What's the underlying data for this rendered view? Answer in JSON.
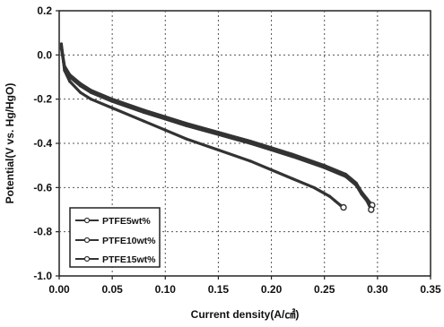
{
  "chart_data": {
    "type": "line",
    "title": "",
    "xlabel": "Current density(A/㎠)",
    "ylabel": "Potential(V vs. Hg/HgO)",
    "xlim": [
      0.0,
      0.35
    ],
    "ylim": [
      -1.0,
      0.2
    ],
    "xticks": [
      "0.00",
      "0.05",
      "0.10",
      "0.15",
      "0.20",
      "0.25",
      "0.30",
      "0.35"
    ],
    "yticks": [
      "0.2",
      "0.0",
      "-0.2",
      "-0.4",
      "-0.6",
      "-0.8",
      "-1.0"
    ],
    "grid": true,
    "legend_position": "bottom-left",
    "series": [
      {
        "name": "PTFE5wt%",
        "color": "#333333",
        "x": [
          0.002,
          0.005,
          0.01,
          0.02,
          0.03,
          0.05,
          0.08,
          0.1,
          0.12,
          0.15,
          0.18,
          0.2,
          0.22,
          0.24,
          0.255,
          0.26,
          0.265,
          0.268
        ],
        "y": [
          0.05,
          -0.07,
          -0.12,
          -0.17,
          -0.2,
          -0.24,
          -0.3,
          -0.34,
          -0.38,
          -0.43,
          -0.48,
          -0.52,
          -0.56,
          -0.6,
          -0.64,
          -0.66,
          -0.68,
          -0.69
        ]
      },
      {
        "name": "PTFE10wt%",
        "color": "#333333",
        "x": [
          0.002,
          0.005,
          0.01,
          0.02,
          0.03,
          0.05,
          0.08,
          0.1,
          0.12,
          0.15,
          0.18,
          0.2,
          0.22,
          0.25,
          0.27,
          0.28,
          0.285,
          0.29,
          0.295
        ],
        "y": [
          0.04,
          -0.05,
          -0.09,
          -0.13,
          -0.16,
          -0.2,
          -0.25,
          -0.28,
          -0.31,
          -0.35,
          -0.39,
          -0.42,
          -0.45,
          -0.5,
          -0.54,
          -0.58,
          -0.62,
          -0.65,
          -0.68
        ]
      },
      {
        "name": "PTFE15wt%",
        "color": "#333333",
        "x": [
          0.002,
          0.005,
          0.01,
          0.02,
          0.03,
          0.05,
          0.08,
          0.1,
          0.12,
          0.15,
          0.18,
          0.2,
          0.22,
          0.25,
          0.27,
          0.28,
          0.285,
          0.29,
          0.294
        ],
        "y": [
          0.03,
          -0.06,
          -0.1,
          -0.14,
          -0.17,
          -0.21,
          -0.26,
          -0.29,
          -0.32,
          -0.36,
          -0.4,
          -0.43,
          -0.46,
          -0.51,
          -0.55,
          -0.59,
          -0.63,
          -0.66,
          -0.7
        ]
      }
    ]
  }
}
